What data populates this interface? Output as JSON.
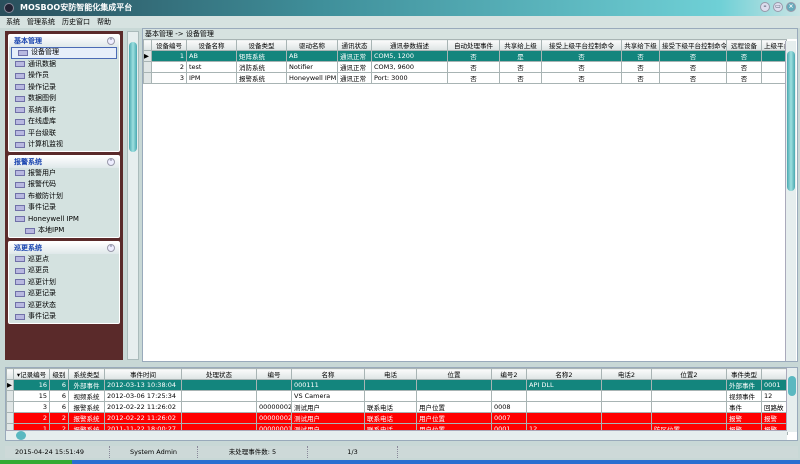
{
  "window": {
    "title": "MOSBOO安防智能化集成平台",
    "controls": [
      "minimize",
      "restore",
      "close"
    ]
  },
  "menu": [
    "系统",
    "管理系统",
    "历史窗口",
    "帮助"
  ],
  "sidebar": {
    "groups": [
      {
        "title": "基本管理",
        "items": [
          {
            "label": "设备管理",
            "selected": true
          },
          {
            "label": "通讯数据"
          },
          {
            "label": "操作员"
          },
          {
            "label": "操作记录"
          },
          {
            "label": "数据图例"
          },
          {
            "label": "系统事件"
          },
          {
            "label": "在线虚库"
          },
          {
            "label": "平台级联"
          },
          {
            "label": "计算机监视"
          }
        ]
      },
      {
        "title": "报警系统",
        "items": [
          {
            "label": "报警用户"
          },
          {
            "label": "报警代码"
          },
          {
            "label": "布撤防计划"
          },
          {
            "label": "事件记录"
          },
          {
            "label": "Honeywell IPM"
          },
          {
            "label": "本地IPM",
            "sub": true
          }
        ]
      },
      {
        "title": "巡更系统",
        "items": [
          {
            "label": "巡更点"
          },
          {
            "label": "巡更员"
          },
          {
            "label": "巡更计划"
          },
          {
            "label": "巡更记录"
          },
          {
            "label": "巡更状态"
          },
          {
            "label": "事件记录"
          }
        ]
      }
    ]
  },
  "main": {
    "breadcrumb": "基本管理 -> 设备管理",
    "columns": [
      "设备编号",
      "设备名称",
      "设备类型",
      "驱动名称",
      "通讯状态",
      "通讯参数描述",
      "自动处理事件",
      "共享给上级",
      "接受上级平台控制命令",
      "共享给下级",
      "接受下级平台控制命令",
      "远程设备",
      "上级平台名"
    ],
    "rows": [
      [
        "1",
        "AB",
        "矩阵系统",
        "AB",
        "通讯正常",
        "COM5, 1200",
        "否",
        "是",
        "否",
        "否",
        "否",
        "否",
        ""
      ],
      [
        "2",
        "test",
        "消防系统",
        "Notifier",
        "通讯正常",
        "COM3, 9600",
        "否",
        "否",
        "否",
        "否",
        "否",
        "否",
        ""
      ],
      [
        "3",
        "IPM",
        "报警系统",
        "Honeywell IPM",
        "通讯正常",
        "Port: 3000",
        "否",
        "否",
        "否",
        "否",
        "否",
        "否",
        ""
      ]
    ]
  },
  "events": {
    "columns": [
      "记录编号",
      "级别",
      "系统类型",
      "事件时间",
      "处理状态",
      "编号",
      "名称",
      "电话",
      "位置",
      "编号2",
      "名称2",
      "电话2",
      "位置2",
      "事件类型",
      ""
    ],
    "rows": [
      [
        "16",
        "6",
        "外部事件",
        "2012-03-13 10:38:04",
        "",
        "",
        "000111",
        "",
        "",
        "",
        "API DLL",
        "",
        "",
        "外部事件",
        "0001"
      ],
      [
        "15",
        "6",
        "视频系统",
        "2012-03-06 17:25:34",
        "",
        "",
        "VS Camera",
        "",
        "",
        "",
        "",
        "",
        "",
        "视频事件",
        "12"
      ],
      [
        "3",
        "6",
        "报警系统",
        "2012-02-22 11:26:02",
        "",
        "00000002",
        "测试用户",
        "联系电话",
        "用户位置",
        "0008",
        "",
        "",
        "",
        "事件",
        "回路故"
      ],
      [
        "2",
        "2",
        "报警系统",
        "2012-02-22 11:26:02",
        "",
        "00000002",
        "测试用户",
        "联系电话",
        "用户位置",
        "0007",
        "",
        "",
        "",
        "报警",
        "报警"
      ],
      [
        "1",
        "2",
        "报警系统",
        "2011-11-22 18:00:27",
        "",
        "00000001",
        "测试用户",
        "联系电话",
        "用户位置",
        "0001",
        "12",
        "",
        "防区位置",
        "报警",
        "报警"
      ]
    ],
    "row_styles": [
      "selected",
      "normal",
      "normal",
      "alarm",
      "alarm"
    ]
  },
  "status": {
    "datetime": "2015-04-24 15:51:49",
    "user": "System Admin",
    "unhandled": "未处理事件数: 5",
    "page": "1/3"
  },
  "colors": {
    "selected": "#13857d",
    "alarm": "#ff0000",
    "frame": "#5a2a2a"
  }
}
